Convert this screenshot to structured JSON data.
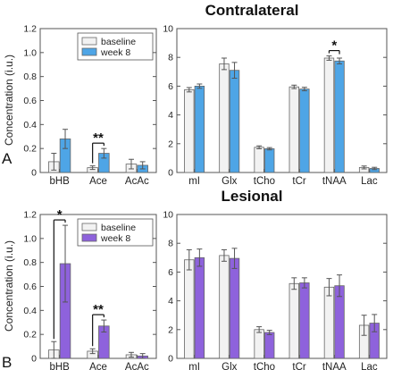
{
  "figure": {
    "panels": [
      {
        "letter": "A",
        "title": "Contralateral"
      },
      {
        "letter": "B",
        "title": "Lesional"
      }
    ]
  },
  "colors": {
    "baseline": "#f2f2f2",
    "week8_contralateral": "#4ea5e6",
    "week8_lesional": "#8e62dc",
    "axis": "#555555",
    "errorbar": "#555555"
  },
  "chart_data": [
    {
      "type": "bar",
      "panel": "A",
      "subplot": "left",
      "title": "Contralateral",
      "ylabel": "Concentration (i.u.)",
      "categories": [
        "bHB",
        "Ace",
        "AcAc"
      ],
      "ylim": [
        0,
        1.2
      ],
      "yticks": [
        "0",
        "0.2",
        "0.4",
        "0.6",
        "0.8",
        "1.0",
        "1.2"
      ],
      "legend": {
        "position": "top-right",
        "entries": [
          "baseline",
          "week 8"
        ]
      },
      "series": [
        {
          "name": "baseline",
          "values": [
            0.09,
            0.04,
            0.07
          ],
          "errors": [
            0.07,
            0.015,
            0.04
          ]
        },
        {
          "name": "week 8",
          "values": [
            0.28,
            0.16,
            0.06
          ],
          "errors": [
            0.08,
            0.04,
            0.03
          ]
        }
      ],
      "annotations": [
        {
          "category": "Ace",
          "text": "**"
        }
      ]
    },
    {
      "type": "bar",
      "panel": "A",
      "subplot": "right",
      "title": "",
      "ylabel": "",
      "categories": [
        "mI",
        "Glx",
        "tCho",
        "tCr",
        "tNAA",
        "Lac"
      ],
      "ylim": [
        0,
        10
      ],
      "yticks": [
        "0",
        "2",
        "4",
        "6",
        "8",
        "10"
      ],
      "series": [
        {
          "name": "baseline",
          "values": [
            5.75,
            7.55,
            1.75,
            5.95,
            7.95,
            0.35
          ],
          "errors": [
            0.15,
            0.4,
            0.1,
            0.12,
            0.15,
            0.1
          ]
        },
        {
          "name": "week 8",
          "values": [
            6.0,
            7.1,
            1.65,
            5.8,
            7.75,
            0.28
          ],
          "errors": [
            0.15,
            0.55,
            0.08,
            0.12,
            0.2,
            0.08
          ]
        }
      ],
      "annotations": [
        {
          "category": "tNAA",
          "text": "*"
        }
      ]
    },
    {
      "type": "bar",
      "panel": "B",
      "subplot": "left",
      "title": "Lesional",
      "ylabel": "Concentration (i.u.)",
      "categories": [
        "bHB",
        "Ace",
        "AcAc"
      ],
      "ylim": [
        0,
        1.2
      ],
      "yticks": [
        "0",
        "0.2",
        "0.4",
        "0.6",
        "0.8",
        "1.0",
        "1.2"
      ],
      "legend": {
        "position": "top-right",
        "entries": [
          "baseline",
          "week 8"
        ]
      },
      "series": [
        {
          "name": "baseline",
          "values": [
            0.07,
            0.06,
            0.03
          ],
          "errors": [
            0.07,
            0.02,
            0.02
          ]
        },
        {
          "name": "week 8",
          "values": [
            0.79,
            0.27,
            0.02
          ],
          "errors": [
            0.32,
            0.05,
            0.02
          ]
        }
      ],
      "annotations": [
        {
          "category": "bHB",
          "text": "*"
        },
        {
          "category": "Ace",
          "text": "**"
        }
      ]
    },
    {
      "type": "bar",
      "panel": "B",
      "subplot": "right",
      "title": "",
      "ylabel": "",
      "categories": [
        "mI",
        "Glx",
        "tCho",
        "tCr",
        "tNAA",
        "Lac"
      ],
      "ylim": [
        0,
        10
      ],
      "yticks": [
        "0",
        "2",
        "4",
        "6",
        "8",
        "10"
      ],
      "series": [
        {
          "name": "baseline",
          "values": [
            6.85,
            7.15,
            2.0,
            5.2,
            4.95,
            2.3
          ],
          "errors": [
            0.7,
            0.4,
            0.2,
            0.4,
            0.6,
            0.7
          ]
        },
        {
          "name": "week 8",
          "values": [
            7.0,
            6.95,
            1.8,
            5.25,
            5.05,
            2.45
          ],
          "errors": [
            0.6,
            0.7,
            0.15,
            0.35,
            0.75,
            0.6
          ]
        }
      ],
      "annotations": []
    }
  ]
}
